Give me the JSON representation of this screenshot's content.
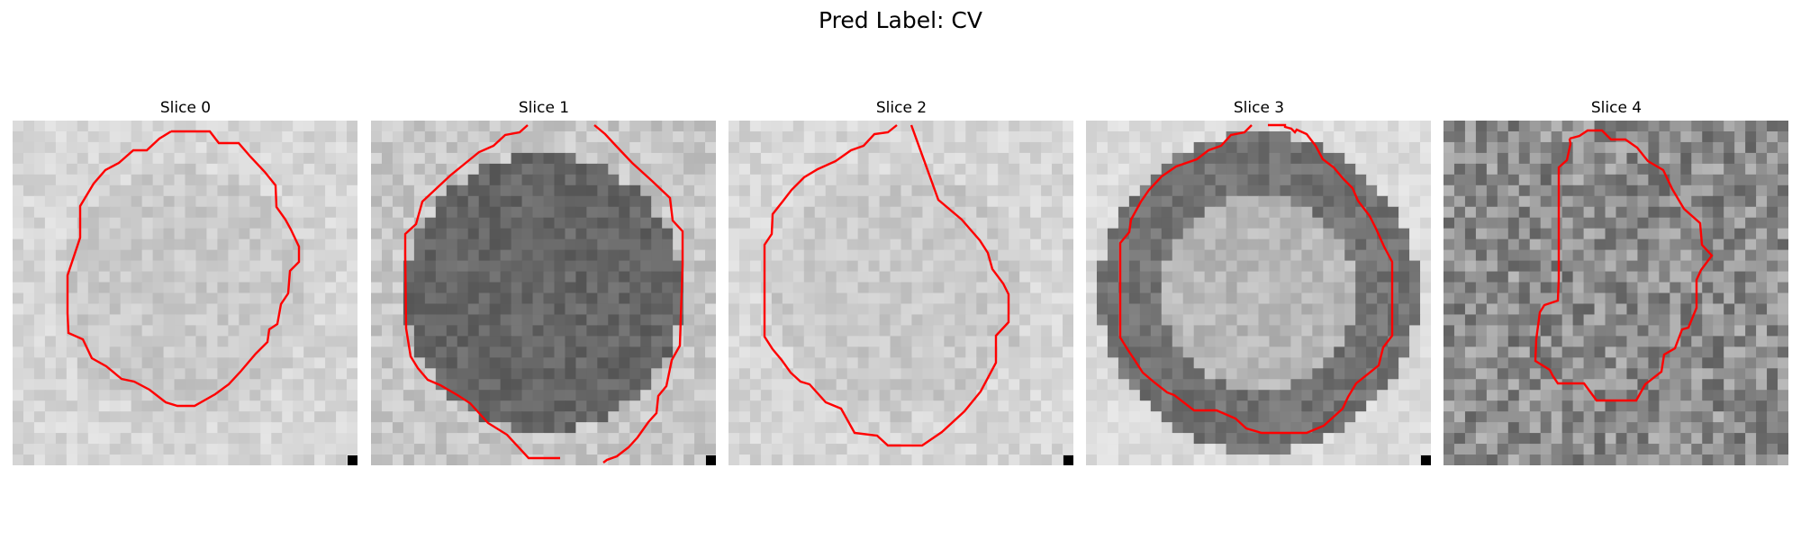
{
  "figure": {
    "title": "Pred Label: CV"
  },
  "panels": [
    {
      "title": "Slice 0",
      "tone": "light",
      "contour_color": "#ff0000"
    },
    {
      "title": "Slice 1",
      "tone": "dark-blob",
      "contour_color": "#ff0000"
    },
    {
      "title": "Slice 2",
      "tone": "light",
      "contour_color": "#ff0000"
    },
    {
      "title": "Slice 3",
      "tone": "ring",
      "contour_color": "#ff0000"
    },
    {
      "title": "Slice 4",
      "tone": "dark-noisy",
      "contour_color": "#ff0000"
    }
  ]
}
